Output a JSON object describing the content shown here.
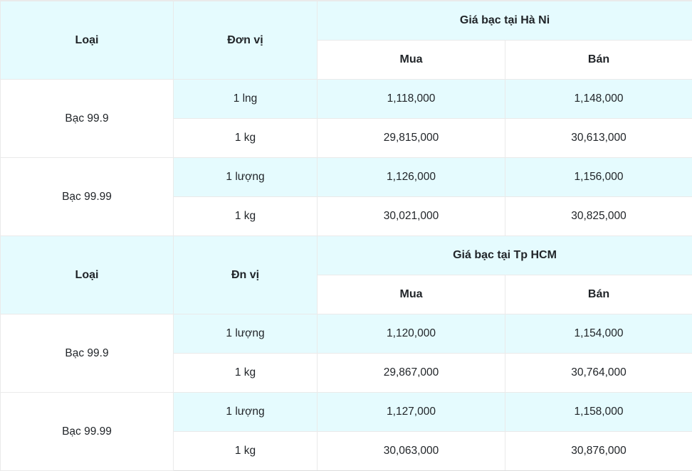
{
  "colors": {
    "highlight": "#e5fbfe",
    "border": "#eaeaea",
    "text": "#212529",
    "background": "#ffffff"
  },
  "table": {
    "sections": [
      {
        "type_header": "Loại",
        "unit_header": "Đơn vị",
        "city_header": "Giá bạc tại Hà Ni",
        "buy_header": "Mua",
        "sell_header": "Bán",
        "groups": [
          {
            "type": "Bạc 99.9",
            "rows": [
              {
                "unit": "1 lng",
                "buy": "1,118,000",
                "sell": "1,148,000"
              },
              {
                "unit": "1 kg",
                "buy": "29,815,000",
                "sell": "30,613,000"
              }
            ]
          },
          {
            "type": "Bạc 99.99",
            "rows": [
              {
                "unit": "1 lượng",
                "buy": "1,126,000",
                "sell": "1,156,000"
              },
              {
                "unit": "1 kg",
                "buy": "30,021,000",
                "sell": "30,825,000"
              }
            ]
          }
        ]
      },
      {
        "type_header": "Loại",
        "unit_header": "Đn vị",
        "city_header": "Giá bạc tại Tp HCM",
        "buy_header": "Mua",
        "sell_header": "Bán",
        "groups": [
          {
            "type": "Bạc 99.9",
            "rows": [
              {
                "unit": "1 lượng",
                "buy": "1,120,000",
                "sell": "1,154,000"
              },
              {
                "unit": "1 kg",
                "buy": "29,867,000",
                "sell": "30,764,000"
              }
            ]
          },
          {
            "type": "Bạc 99.99",
            "rows": [
              {
                "unit": "1 lượng",
                "buy": "1,127,000",
                "sell": "1,158,000"
              },
              {
                "unit": "1 kg",
                "buy": "30,063,000",
                "sell": "30,876,000"
              }
            ]
          }
        ]
      }
    ]
  }
}
